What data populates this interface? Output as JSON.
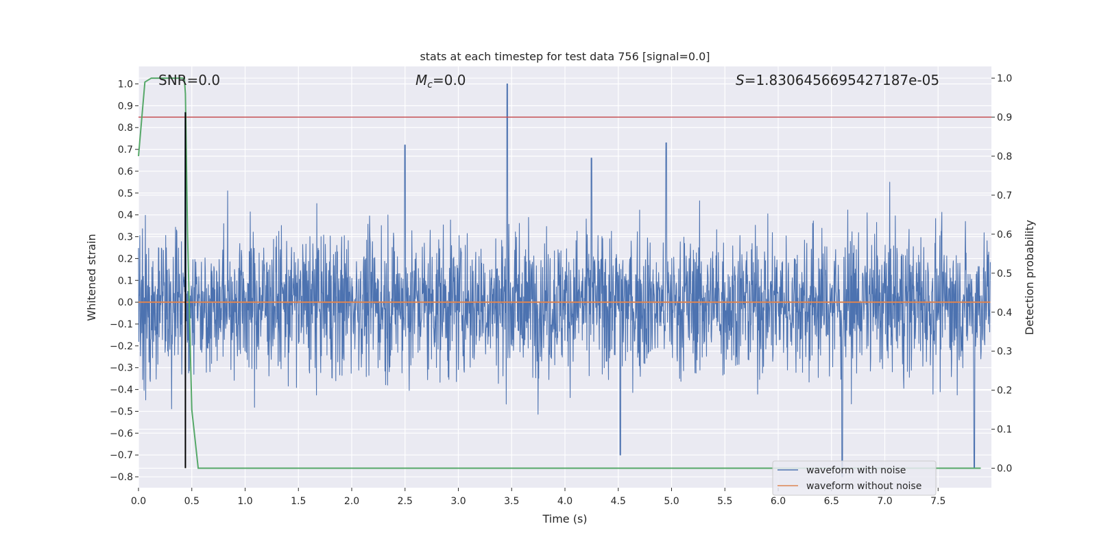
{
  "chart_data": {
    "type": "line",
    "title": "stats at each timestep for test data 756 [signal=0.0]",
    "xlabel": "Time (s)",
    "ylabel_left": "Whitened strain",
    "ylabel_right": "Detection probability",
    "xlim": [
      0.0,
      8.0
    ],
    "ylim_left": [
      -0.85,
      1.08
    ],
    "ylim_right": [
      -0.05,
      1.03
    ],
    "x_ticks": [
      "0.0",
      "0.5",
      "1.0",
      "1.5",
      "2.0",
      "2.5",
      "3.0",
      "3.5",
      "4.0",
      "4.5",
      "5.0",
      "5.5",
      "6.0",
      "6.5",
      "7.0",
      "7.5"
    ],
    "y_ticks_left": [
      "1.0",
      "0.9",
      "0.8",
      "0.7",
      "0.6",
      "0.5",
      "0.4",
      "0.3",
      "0.2",
      "0.1",
      "0.0",
      "−0.1",
      "−0.2",
      "−0.3",
      "−0.4",
      "−0.5",
      "−0.6",
      "−0.7",
      "−0.8"
    ],
    "y_ticks_right": [
      "1.0",
      "0.9",
      "0.8",
      "0.7",
      "0.6",
      "0.5",
      "0.4",
      "0.3",
      "0.2",
      "0.1",
      "0.0"
    ],
    "grid": true,
    "annotations": {
      "snr": "SNR=0.0",
      "mc_symbol": "M",
      "mc_sub": "c",
      "mc_value": "=0.0",
      "s_symbol": "S",
      "s_value": "=1.8306456695427187e-05"
    },
    "series": [
      {
        "name": "waveform with noise",
        "color": "#4c72b0",
        "axis": "left",
        "x_range": [
          0.0,
          7.99
        ],
        "typical_min": -0.5,
        "typical_max": 0.55,
        "peaks": [
          {
            "x": 3.46,
            "y": 1.0
          },
          {
            "x": 0.44,
            "y": 0.87
          },
          {
            "x": 4.95,
            "y": 0.73
          },
          {
            "x": 2.5,
            "y": 0.72
          },
          {
            "x": 4.25,
            "y": 0.66
          },
          {
            "x": 6.6,
            "y": -0.8
          },
          {
            "x": 7.84,
            "y": -0.76
          },
          {
            "x": 4.52,
            "y": -0.7
          }
        ]
      },
      {
        "name": "waveform without noise",
        "color": "#dd8452",
        "axis": "left",
        "x": [
          0.0,
          7.99
        ],
        "y": [
          0.0,
          0.0
        ]
      },
      {
        "name": "detection probability",
        "color": "#55a868",
        "axis": "right",
        "x": [
          0.0,
          0.06,
          0.12,
          0.2,
          0.3,
          0.38,
          0.43,
          0.44,
          0.46,
          0.5,
          0.56,
          0.6,
          2.0,
          4.0,
          6.0,
          7.9
        ],
        "y": [
          0.8,
          0.99,
          1.0,
          1.0,
          1.0,
          1.0,
          1.0,
          0.96,
          0.6,
          0.15,
          0.0,
          0.0,
          0.0,
          0.0,
          0.0,
          0.0
        ]
      }
    ],
    "threshold": {
      "axis": "right",
      "value": 0.9,
      "color": "#c44e52"
    },
    "marker_line": {
      "x": 0.44,
      "y_from": -0.76,
      "y_to": 0.87,
      "color": "#000000"
    },
    "legend": {
      "position": "lower-right",
      "entries": [
        {
          "label": "waveform with noise",
          "color": "#4c72b0"
        },
        {
          "label": "waveform without noise",
          "color": "#dd8452"
        }
      ]
    },
    "colors": {
      "background": "#eaeaf2",
      "grid": "#ffffff",
      "text": "#262626"
    }
  }
}
